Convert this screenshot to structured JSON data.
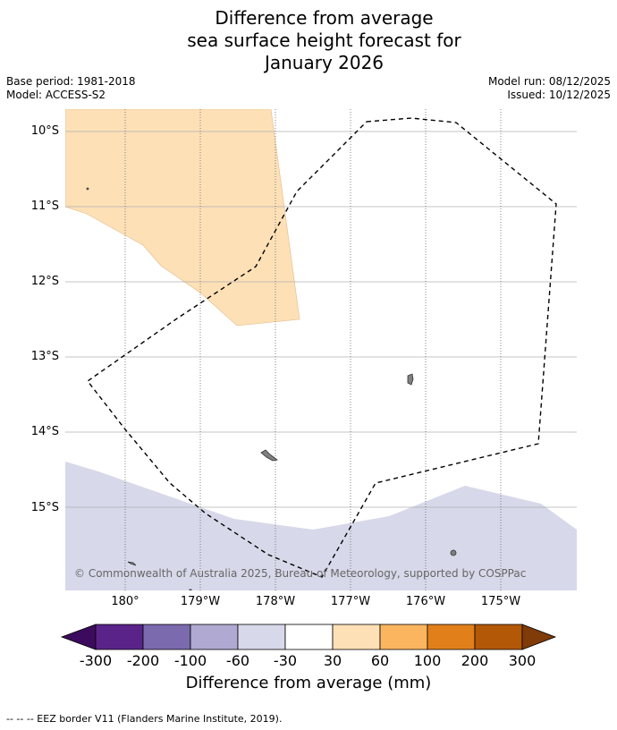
{
  "title": {
    "line1": "Difference from average",
    "line2": "sea surface height forecast for",
    "line3": "January 2026"
  },
  "meta": {
    "base_period": "Base period: 1981-2018",
    "model": "Model: ACCESS-S2",
    "model_run": "Model run: 08/12/2025",
    "issued": "Issued: 10/12/2025"
  },
  "map": {
    "lat_labels": [
      "10°S",
      "11°S",
      "12°S",
      "13°S",
      "14°S",
      "15°S"
    ],
    "lon_labels": [
      "180°",
      "179°W",
      "178°W",
      "177°W",
      "176°W",
      "175°W"
    ],
    "copyright": "© Commonwealth of Australia 2025, Bureau of Meteorology, supported by COSPPac",
    "anomaly_fill_colors": {
      "positive": "#fde0b6",
      "negative": "#d7d8e9"
    },
    "eez_line_color": "#000000"
  },
  "colorbar": {
    "tick_labels": [
      "-300",
      "-200",
      "-100",
      "-60",
      "-30",
      "30",
      "60",
      "100",
      "200",
      "300"
    ],
    "colors": [
      "#3d0b5e",
      "#5a2389",
      "#7b6aad",
      "#b0a9d1",
      "#d7d8e9",
      "#ffffff",
      "#fde0b6",
      "#fbb55f",
      "#e1801a",
      "#b35806",
      "#7f3b08"
    ],
    "title": "Difference from average (mm)"
  },
  "footer": "--  --  -- EEZ border V11 (Flanders Marine Institute, 2019)."
}
